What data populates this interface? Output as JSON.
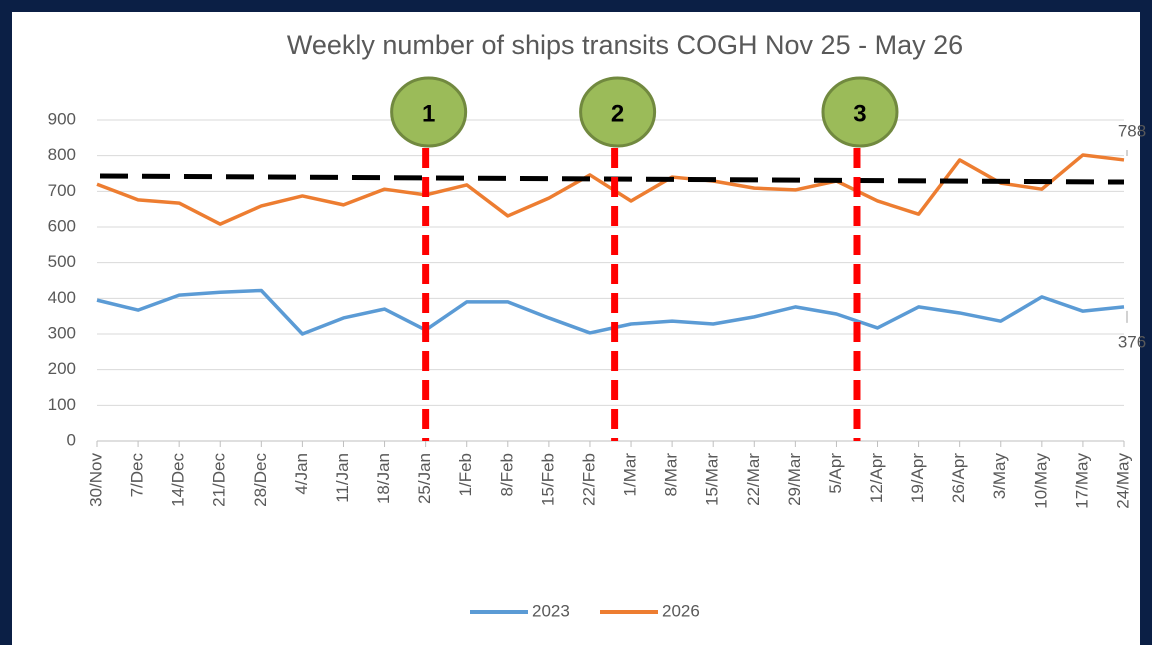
{
  "chart_data": {
    "type": "line",
    "title": "Weekly number of ships transits COGH Nov 25 - May 26",
    "categories": [
      "30/Nov",
      "7/Dec",
      "14/Dec",
      "21/Dec",
      "28/Dec",
      "4/Jan",
      "11/Jan",
      "18/Jan",
      "25/Jan",
      "1/Feb",
      "8/Feb",
      "15/Feb",
      "22/Feb",
      "1/Mar",
      "8/Mar",
      "15/Mar",
      "22/Mar",
      "29/Mar",
      "5/Apr",
      "12/Apr",
      "19/Apr",
      "26/Apr",
      "3/May",
      "10/May",
      "17/May",
      "24/May"
    ],
    "series": [
      {
        "name": "2023",
        "color": "#5b9bd5",
        "values": [
          395,
          367,
          409,
          417,
          422,
          300,
          345,
          370,
          311,
          390,
          390,
          345,
          303,
          328,
          336,
          328,
          348,
          376,
          356,
          317,
          376,
          359,
          336,
          404,
          364,
          376
        ]
      },
      {
        "name": "2026",
        "color": "#ed7d31",
        "values": [
          720,
          676,
          667,
          608,
          659,
          687,
          662,
          706,
          690,
          718,
          631,
          681,
          746,
          673,
          740,
          729,
          709,
          704,
          729,
          673,
          636,
          788,
          723,
          706,
          802,
          788
        ]
      }
    ],
    "trend_line": {
      "color": "#000000",
      "values": [
        743,
        726
      ]
    },
    "events": [
      {
        "label": "1",
        "at": 8
      },
      {
        "label": "2",
        "at": 12.6
      },
      {
        "label": "3",
        "at": 18.5
      }
    ],
    "event_color": "#ff0000",
    "ylim": [
      0,
      900
    ],
    "yticks": [
      0,
      100,
      200,
      300,
      400,
      500,
      600,
      700,
      800,
      900
    ],
    "grid": true,
    "legend": "bottom"
  }
}
